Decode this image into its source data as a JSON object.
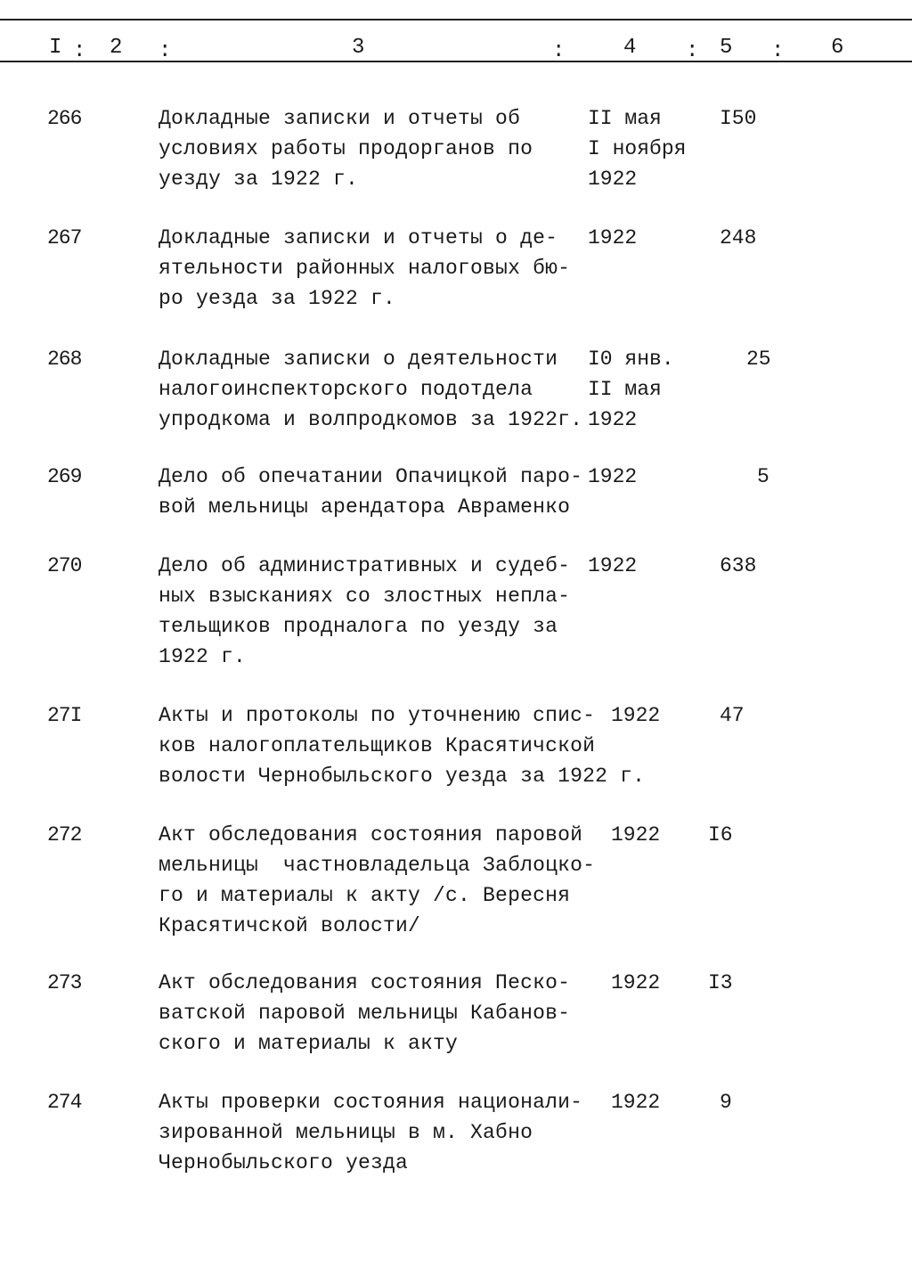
{
  "header": {
    "columns": [
      "I",
      "2",
      "3",
      "4",
      "5",
      "6"
    ],
    "separator": ":"
  },
  "rows": [
    {
      "num": "266",
      "desc": [
        "Докладные записки и отчеты об",
        "условиях работы продорганов по",
        "уезду за 1922 г."
      ],
      "date": [
        "II мая",
        "I ноября",
        "1922"
      ],
      "pages": "I50"
    },
    {
      "num": "267",
      "desc": [
        "Докладные записки и отчеты о де-",
        "ятельности районных налоговых бю-",
        "ро уезда за 1922 г."
      ],
      "date": [
        "1922"
      ],
      "pages": "248"
    },
    {
      "num": "268",
      "desc": [
        "Докладные записки о деятельности",
        "налогоинспекторского подотдела",
        "упродкома и волпродкомов за 1922г."
      ],
      "date": [
        "I0 янв.",
        "II мая",
        "1922"
      ],
      "pages": "25"
    },
    {
      "num": "269",
      "desc": [
        "Дело об опечатании Опачицкой паро-",
        "вой мельницы арендатора Авраменко"
      ],
      "date": [
        "1922"
      ],
      "pages": "5"
    },
    {
      "num": "270",
      "desc": [
        "Дело об административных и судеб-",
        "ных взысканиях со злостных непла-",
        "тельщиков продналога по уезду за",
        "1922 г."
      ],
      "date": [
        "1922"
      ],
      "pages": "638"
    },
    {
      "num": "27I",
      "desc": [
        "Акты и протоколы по уточнению спис-",
        "ков налогоплательщиков Красятичской",
        "волости Чернобыльского уезда за 1922 г."
      ],
      "date": [
        "1922"
      ],
      "pages": "47"
    },
    {
      "num": "272",
      "desc": [
        "Акт обследования состояния паровой",
        "мельницы  частновладельца Заблоцко-",
        "го и материалы к акту /с. Вересня",
        "Красятичской волости/"
      ],
      "date": [
        "1922"
      ],
      "pages": "I6"
    },
    {
      "num": "273",
      "desc": [
        "Акт обследования состояния Песко-",
        "ватской паровой мельницы Кабанов-",
        "ского и материалы к акту"
      ],
      "date": [
        "1922"
      ],
      "pages": "I3"
    },
    {
      "num": "274",
      "desc": [
        "Акты проверки состояния национали-",
        "зированной мельницы в м. Хабно",
        "Чернобыльского уезда"
      ],
      "date": [
        "1922"
      ],
      "pages": "9"
    }
  ]
}
